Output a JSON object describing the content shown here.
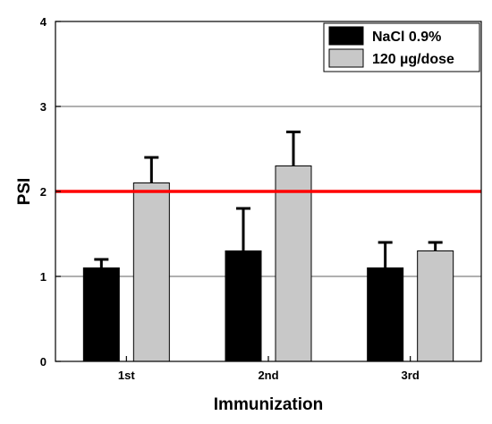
{
  "chart_data": {
    "type": "bar",
    "categories": [
      "1st",
      "2nd",
      "3rd"
    ],
    "series": [
      {
        "name": "NaCl 0.9%",
        "values": [
          1.1,
          1.3,
          1.1
        ],
        "errors": [
          0.1,
          0.5,
          0.3
        ],
        "color": "#000000"
      },
      {
        "name": "120 µg/dose",
        "values": [
          2.1,
          2.3,
          1.3
        ],
        "errors": [
          0.3,
          0.4,
          0.1
        ],
        "color": "#c8c8c8"
      }
    ],
    "title": "",
    "xlabel": "Immunization",
    "ylabel": "PSI",
    "ylim": [
      0,
      4
    ],
    "yticks": [
      "0",
      "1",
      "2",
      "3",
      "4"
    ],
    "gridlines": [
      1,
      3
    ],
    "reference_line": {
      "value": 2,
      "color": "#ff0000"
    },
    "legend_position": "top-right"
  }
}
